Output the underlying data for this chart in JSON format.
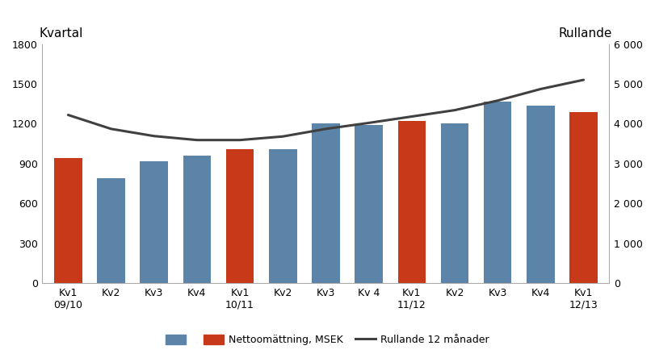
{
  "categories": [
    "Kv1\n09/10",
    "Kv2",
    "Kv3",
    "Kv4",
    "Kv1\n10/11",
    "Kv2",
    "Kv3",
    "Kv 4",
    "Kv1\n11/12",
    "Kv2",
    "Kv3",
    "Kv4",
    "Kv1\n12/13"
  ],
  "bar_values": [
    940,
    790,
    915,
    960,
    1010,
    1010,
    1200,
    1190,
    1220,
    1205,
    1365,
    1335,
    1290
  ],
  "bar_colors": [
    "#C8391A",
    "#5B84A8",
    "#5B84A8",
    "#5B84A8",
    "#C8391A",
    "#5B84A8",
    "#5B84A8",
    "#5B84A8",
    "#C8391A",
    "#5B84A8",
    "#5B84A8",
    "#5B84A8",
    "#C8391A"
  ],
  "line_values": [
    4220,
    3870,
    3690,
    3590,
    3590,
    3680,
    3870,
    4020,
    4180,
    4340,
    4580,
    4870,
    5100
  ],
  "left_ylim": [
    0,
    1800
  ],
  "right_ylim": [
    0,
    6000
  ],
  "left_yticks": [
    0,
    300,
    600,
    900,
    1200,
    1500,
    1800
  ],
  "right_yticks": [
    0,
    1000,
    2000,
    3000,
    4000,
    5000,
    6000
  ],
  "ylabel_left": "Kvartal",
  "ylabel_right": "Rullande",
  "line_color": "#404040",
  "line_width": 2.2,
  "legend_bar_blue_label": "",
  "legend_bar_orange_label": "Nettoomättning, MSEK",
  "legend_line_label": "Rullande 12 månader",
  "bar_blue_color": "#5B84A8",
  "bar_orange_color": "#C8391A",
  "bg_color": "#FFFFFF",
  "spine_color": "#AAAAAA",
  "figsize": [
    8.11,
    4.44
  ],
  "dpi": 100
}
